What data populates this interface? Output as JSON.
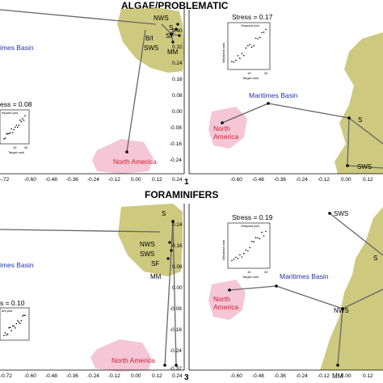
{
  "header_top": "ALGAE/PROBLEMATIC",
  "header_mid": "FORAMINIFERS",
  "panel_numbers": [
    "1",
    "3"
  ],
  "colors": {
    "olive": "#cdc97f",
    "pink": "#f4c6d6",
    "blue": "#2233aa",
    "red": "#cc2233",
    "edge": "#666666"
  },
  "p1": {
    "stress": "ess = 0.08",
    "shepard": [
      "hepard plot",
      "Target rank",
      "15",
      "30"
    ],
    "labels": {
      "basin": "imes Basin",
      "na": "North America",
      "nws": "NWS",
      "s": "S",
      "sf": "SF",
      "bi": "B/I",
      "sws": "SWS",
      "mm": "MM"
    },
    "xticks": [
      "-.72",
      "-0.60",
      "-0.48",
      "-0.36",
      "-0.24",
      "-0.12",
      "0.00",
      "0.12",
      "0.24"
    ]
  },
  "p2": {
    "stress": "Stress = 0.17",
    "shepard": [
      "Shepard plot",
      "Obtained rank",
      "Target rank",
      "15",
      "30"
    ],
    "labels": {
      "basin": "Maritimes Basin",
      "na1": "North",
      "na2": "America",
      "s": "S",
      "sws": "SWS"
    },
    "yticks": [
      "0.40",
      "0.32",
      "0.24",
      "0.16",
      "0.08",
      "0.00",
      "-0.08",
      "-0.16",
      "-0.24"
    ],
    "xticks": [
      "-0.60",
      "-0.48",
      "-0.36",
      "-0.24",
      "-0.12",
      "0.00",
      "0.12"
    ]
  },
  "p3": {
    "stress": "s = 0.10",
    "shepard": [
      "ard plot"
    ],
    "labels": {
      "basin": "imes Basin",
      "na": "North America",
      "s": "S",
      "nws": "NWS",
      "sws": "SWS",
      "sf": "SF",
      "mm": "MM"
    },
    "xticks": [
      "-0.72",
      "-0.60",
      "-0.48",
      "-0.36",
      "-0.24",
      "-0.12",
      "0.00",
      "0.12",
      "0.24"
    ]
  },
  "p4": {
    "stress": "Stress = 0.19",
    "shepard": [
      "Shepard plot",
      "Obtained rank",
      "Target rank",
      "15",
      "30"
    ],
    "labels": {
      "basin": "Maritimes Basin",
      "na1": "North",
      "na2": "America",
      "s": "S",
      "nws": "NWS",
      "sws": "SWS",
      "mm": "MM"
    },
    "yticks": [
      "0.24",
      "0.16",
      "0.08",
      "0.00",
      "-0.08",
      "-0.16",
      "-0.24",
      "-0.32"
    ],
    "xticks": [
      "-0.60",
      "-0.48",
      "-0.36",
      "-0.24",
      "-0.12",
      "0.00",
      "0.12"
    ]
  }
}
